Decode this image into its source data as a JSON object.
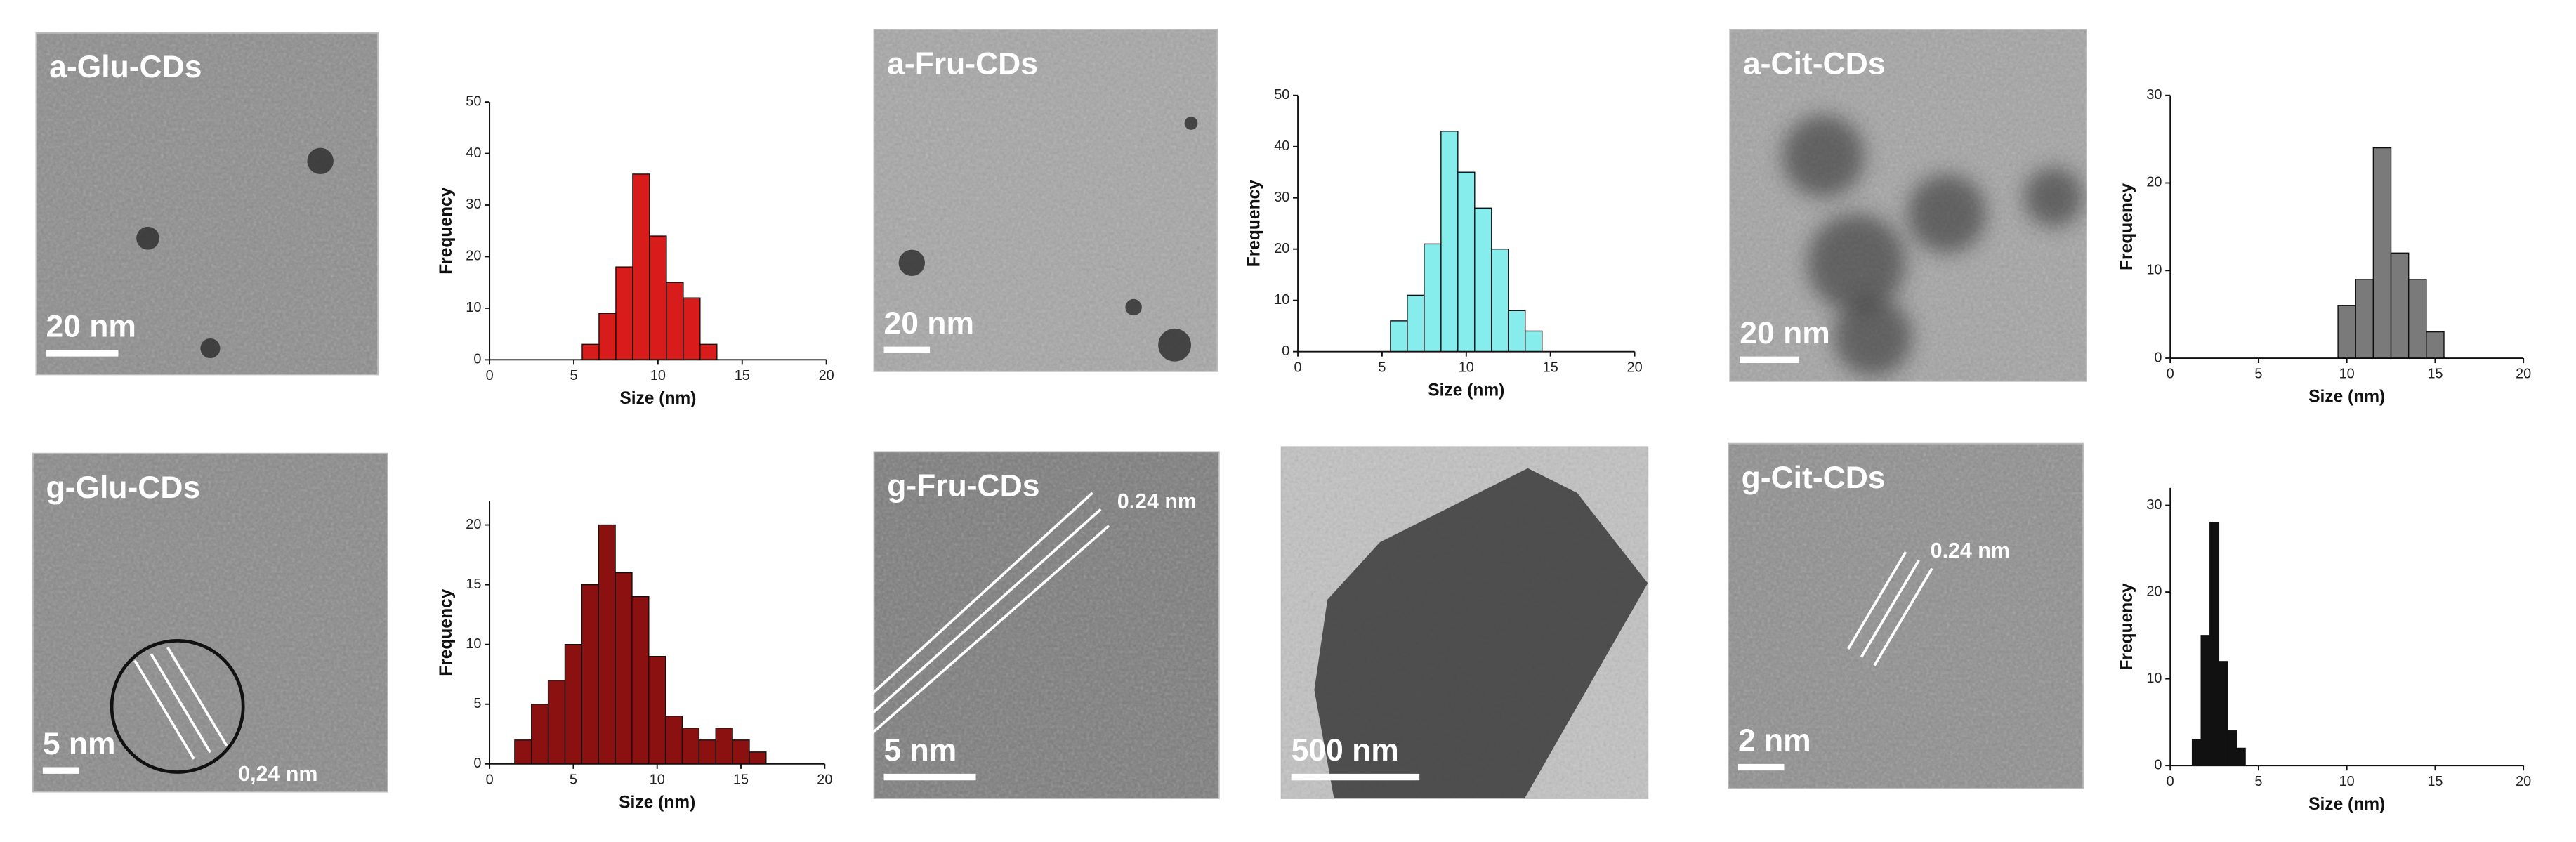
{
  "figures": [
    {
      "label": "a-Glu-CDs",
      "scale_bar": "20 nm"
    },
    {
      "label": "a-Fru-CDs",
      "scale_bar": "20 nm"
    },
    {
      "label": "a-Cit-CDs",
      "scale_bar": "20 nm"
    },
    {
      "label": "g-Glu-CDs",
      "scale_bar": "5 nm",
      "annotation": "0,24 nm"
    },
    {
      "label": "g-Fru-CDs",
      "scale_bar": "5 nm",
      "annotation": "0.24 nm"
    },
    {
      "scale_bar": "500 nm"
    },
    {
      "label": "g-Cit-CDs",
      "scale_bar": "2 nm",
      "annotation": "0.24 nm"
    }
  ],
  "chart_data": [
    {
      "type": "histogram",
      "x_label": "Size (nm)",
      "y_label": "Frequency",
      "color": "#d81c1c",
      "bins": [
        5.5,
        6.5,
        7.5,
        8.5,
        9.5,
        10.5,
        11.5,
        12.5,
        13.5
      ],
      "values": [
        3,
        9,
        18,
        36,
        24,
        15,
        12,
        3
      ],
      "xlim": [
        0,
        20
      ],
      "xticks": [
        0,
        5,
        10,
        15,
        20
      ],
      "ylim": [
        0,
        50
      ],
      "yticks": [
        0,
        10,
        20,
        30,
        40,
        50
      ]
    },
    {
      "type": "histogram",
      "x_label": "Size (nm)",
      "y_label": "Frequency",
      "color": "#86ecec",
      "bins": [
        5.5,
        6.5,
        7.5,
        8.5,
        9.5,
        10.5,
        11.5,
        12.5,
        13.5,
        14.5
      ],
      "values": [
        6,
        11,
        21,
        43,
        35,
        28,
        20,
        8,
        4
      ],
      "xlim": [
        0,
        20
      ],
      "xticks": [
        0,
        5,
        10,
        15,
        20
      ],
      "ylim": [
        0,
        50
      ],
      "yticks": [
        0,
        10,
        20,
        30,
        40,
        50
      ]
    },
    {
      "type": "histogram",
      "x_label": "Size (nm)",
      "y_label": "Frequency",
      "color": "#7a7a7a",
      "bins": [
        9.5,
        10.5,
        11.5,
        12.5,
        13.5,
        14.5,
        15.5
      ],
      "values": [
        6,
        9,
        24,
        12,
        9,
        3
      ],
      "xlim": [
        0,
        20
      ],
      "xticks": [
        0,
        5,
        10,
        15,
        20
      ],
      "ylim": [
        0,
        30
      ],
      "yticks": [
        0,
        10,
        20,
        30
      ]
    },
    {
      "type": "histogram",
      "x_label": "Size (nm)",
      "y_label": "Frequency",
      "color": "#8b1010",
      "bins": [
        1.5,
        2.5,
        3.5,
        4.5,
        5.5,
        6.5,
        7.5,
        8.5,
        9.5,
        10.5,
        11.5,
        12.5,
        13.5,
        14.5,
        15.5,
        16.5
      ],
      "values": [
        2,
        5,
        7,
        10,
        15,
        20,
        16,
        14,
        9,
        4,
        3,
        2,
        3,
        2,
        1
      ],
      "xlim": [
        0,
        20
      ],
      "xticks": [
        0,
        5,
        10,
        15,
        20
      ],
      "ylim": [
        0,
        22
      ],
      "yticks": [
        0,
        5,
        10,
        15,
        20
      ]
    },
    {
      "type": "histogram",
      "x_label": "Size (nm)",
      "y_label": "Frequency",
      "color": "#111111",
      "bins": [
        1.25,
        1.75,
        2.25,
        2.75,
        3.25,
        3.75,
        4.25
      ],
      "values": [
        3,
        15,
        28,
        12,
        4,
        2
      ],
      "xlim": [
        0,
        20
      ],
      "xticks": [
        0,
        5,
        10,
        15,
        20
      ],
      "ylim": [
        0,
        32
      ],
      "yticks": [
        0,
        10,
        20,
        30
      ]
    }
  ]
}
